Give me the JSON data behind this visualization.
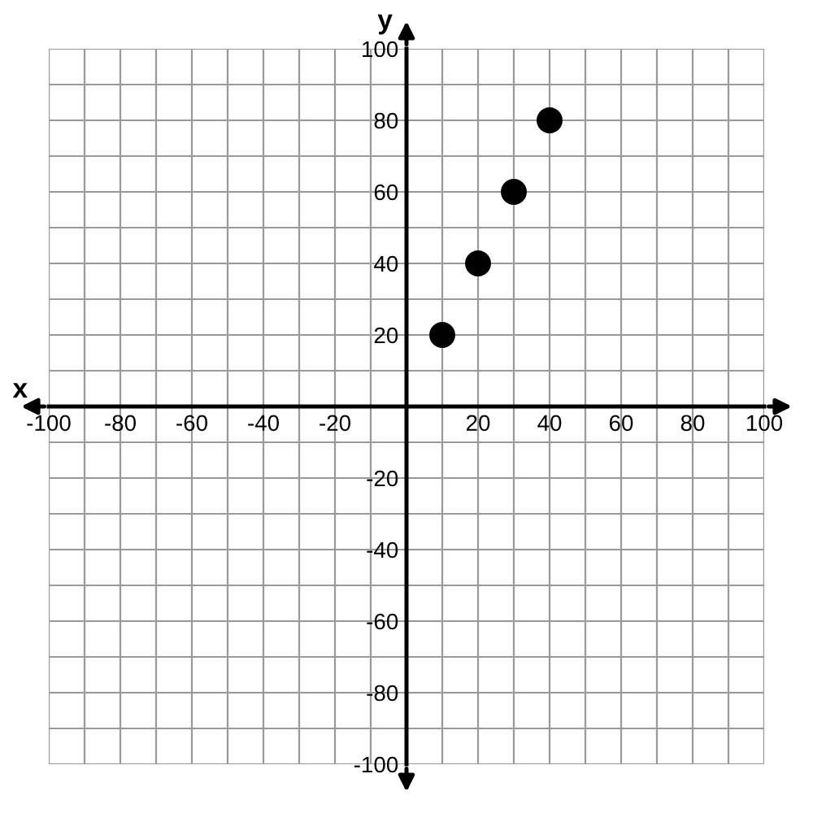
{
  "chart_data": {
    "type": "scatter",
    "xlabel": "x",
    "ylabel": "y",
    "x": [
      10,
      20,
      30,
      40
    ],
    "series": [
      {
        "color": "#000000",
        "values": [
          20,
          40,
          60,
          80
        ]
      }
    ],
    "marker": "circle",
    "grid": true,
    "xlim": [
      -100,
      100
    ],
    "ylim": [
      -100,
      100
    ],
    "xticks": [
      -100,
      {
        "value": -90,
        "label": null
      },
      -80,
      {
        "value": -70,
        "label": null
      },
      -60,
      {
        "value": -50,
        "label": null
      },
      -40,
      {
        "value": -30,
        "label": null
      },
      -20,
      {
        "value": -10,
        "label": null
      },
      {
        "value": 0,
        "label": null
      },
      {
        "value": 10,
        "label": null
      },
      20,
      {
        "value": 30,
        "label": null
      },
      40,
      {
        "value": 50,
        "label": null
      },
      60,
      {
        "value": 70,
        "label": null
      },
      80,
      {
        "value": 90,
        "label": null
      },
      100
    ],
    "yticks": [
      -100,
      {
        "value": -90,
        "label": null
      },
      -80,
      {
        "value": -70,
        "label": null
      },
      -60,
      {
        "value": -50,
        "label": null
      },
      -40,
      {
        "value": -30,
        "label": null
      },
      -20,
      {
        "value": -10,
        "label": null
      },
      {
        "value": 0,
        "label": null
      },
      {
        "value": 10,
        "label": null
      },
      20,
      {
        "value": 30,
        "label": null
      },
      40,
      {
        "value": 50,
        "label": null
      },
      60,
      {
        "value": 70,
        "label": null
      },
      80,
      {
        "value": 90,
        "label": null
      },
      100
    ]
  }
}
